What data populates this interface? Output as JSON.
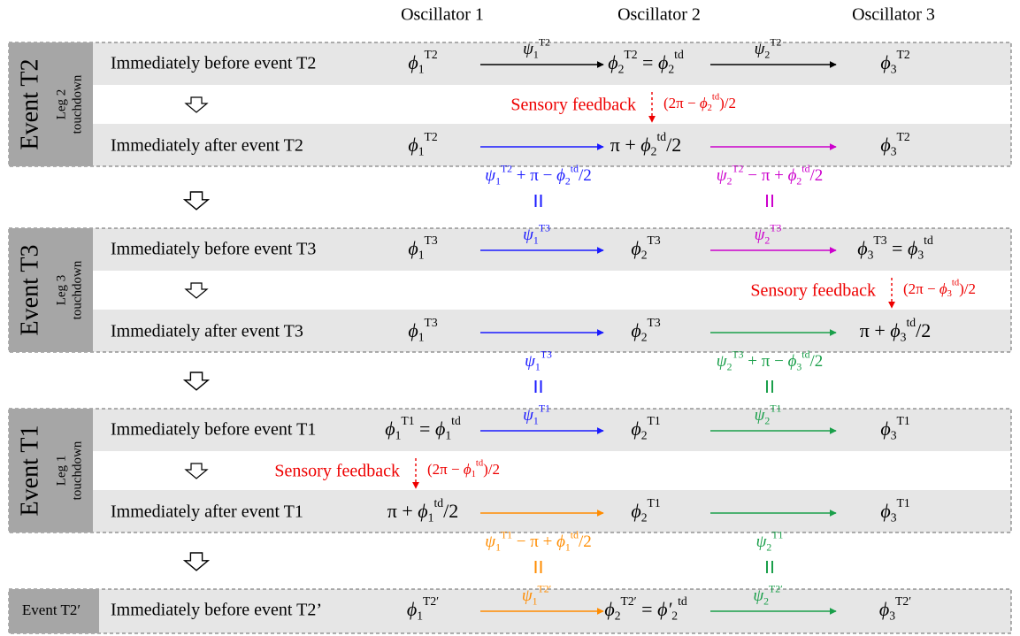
{
  "columns": [
    "Oscillator 1",
    "Oscillator 2",
    "Oscillator 3"
  ],
  "blocks": [
    {
      "label": "Event T2",
      "leg": "Leg 2",
      "touch": "touchdown",
      "before": {
        "text": "Immediately before event T2",
        "cells": [
          [
            [
              "ϕ",
              "1",
              "T2"
            ]
          ],
          [
            [
              "ϕ",
              "2",
              "T2"
            ],
            " = ",
            [
              "ϕ",
              "2",
              "td"
            ]
          ],
          [
            [
              "ϕ",
              "3",
              "T2"
            ]
          ]
        ],
        "arrows": [
          {
            "color": "#000000",
            "label": [
              [
                "ψ",
                "1",
                "T2"
              ]
            ]
          },
          {
            "color": "#000000",
            "label": [
              [
                "ψ",
                "2",
                "T2"
              ]
            ]
          }
        ]
      },
      "feedback": {
        "text": "Sensory feedback",
        "expr": [
          "(2π − ",
          [
            "ϕ",
            "2",
            "td"
          ],
          ")/2"
        ]
      },
      "after": {
        "text": "Immediately after event T2",
        "cells": [
          [
            [
              "ϕ",
              "1",
              "T2"
            ]
          ],
          [
            "π + ",
            [
              "ϕ",
              "2",
              "td"
            ],
            "/2"
          ],
          [
            [
              "ϕ",
              "3",
              "T2"
            ]
          ]
        ],
        "arrows": [
          {
            "color": "#1a1aff"
          },
          {
            "color": "#cc00cc"
          }
        ]
      },
      "below": [
        {
          "color": "#1a1aff",
          "label": [
            [
              "ψ",
              "1",
              "T2"
            ],
            " + π − ",
            [
              "ϕ",
              "2",
              "td"
            ],
            "/2"
          ]
        },
        {
          "color": "#cc00cc",
          "label": [
            [
              "ψ",
              "2",
              "T2"
            ],
            " − π + ",
            [
              "ϕ",
              "2",
              "td"
            ],
            "/2"
          ]
        }
      ]
    },
    {
      "label": "Event T3",
      "leg": "Leg 3",
      "touch": "touchdown",
      "before": {
        "text": "Immediately before event T3",
        "cells": [
          [
            [
              "ϕ",
              "1",
              "T3"
            ]
          ],
          [
            [
              "ϕ",
              "2",
              "T3"
            ]
          ],
          [
            [
              "ϕ",
              "3",
              "T3"
            ],
            " = ",
            [
              "ϕ",
              "3",
              "td"
            ]
          ]
        ],
        "arrows": [
          {
            "color": "#1a1aff",
            "label": [
              [
                "ψ",
                "1",
                "T3"
              ]
            ]
          },
          {
            "color": "#cc00cc",
            "label": [
              [
                "ψ",
                "2",
                "T3"
              ]
            ]
          }
        ]
      },
      "feedback": {
        "text": "Sensory feedback",
        "expr": [
          "(2π − ",
          [
            "ϕ",
            "3",
            "td"
          ],
          ")/2"
        ]
      },
      "after": {
        "text": "Immediately after event T3",
        "cells": [
          [
            [
              "ϕ",
              "1",
              "T3"
            ]
          ],
          [
            [
              "ϕ",
              "2",
              "T3"
            ]
          ],
          [
            "π + ",
            [
              "ϕ",
              "3",
              "td"
            ],
            "/2"
          ]
        ],
        "arrows": [
          {
            "color": "#1a1aff"
          },
          {
            "color": "#1a9f4a"
          }
        ]
      },
      "below": [
        {
          "color": "#1a1aff",
          "label": [
            [
              "ψ",
              "1",
              "T3"
            ]
          ]
        },
        {
          "color": "#1a9f4a",
          "label": [
            [
              "ψ",
              "2",
              "T3"
            ],
            " + π − ",
            [
              "ϕ",
              "3",
              "td"
            ],
            "/2"
          ]
        }
      ]
    },
    {
      "label": "Event T1",
      "leg": "Leg 1",
      "touch": "touchdown",
      "before": {
        "text": "Immediately before event T1",
        "cells": [
          [
            [
              "ϕ",
              "1",
              "T1"
            ],
            " = ",
            [
              "ϕ",
              "1",
              "td"
            ]
          ],
          [
            [
              "ϕ",
              "2",
              "T1"
            ]
          ],
          [
            [
              "ϕ",
              "3",
              "T1"
            ]
          ]
        ],
        "arrows": [
          {
            "color": "#1a1aff",
            "label": [
              [
                "ψ",
                "1",
                "T1"
              ]
            ]
          },
          {
            "color": "#1a9f4a",
            "label": [
              [
                "ψ",
                "2",
                "T1"
              ]
            ]
          }
        ]
      },
      "feedback": {
        "text": "Sensory feedback",
        "expr": [
          "(2π − ",
          [
            "ϕ",
            "1",
            "td"
          ],
          ")/2"
        ]
      },
      "after": {
        "text": "Immediately after event T1",
        "cells": [
          [
            "π + ",
            [
              "ϕ",
              "1",
              "td"
            ],
            "/2"
          ],
          [
            [
              "ϕ",
              "2",
              "T1"
            ]
          ],
          [
            [
              "ϕ",
              "3",
              "T1"
            ]
          ]
        ],
        "arrows": [
          {
            "color": "#ff8c00"
          },
          {
            "color": "#1a9f4a"
          }
        ]
      },
      "below": [
        {
          "color": "#ff8c00",
          "label": [
            [
              "ψ",
              "1",
              "T1"
            ],
            " − π + ",
            [
              "ϕ",
              "1",
              "td"
            ],
            "/2"
          ]
        },
        {
          "color": "#1a9f4a",
          "label": [
            [
              "ψ",
              "2",
              "T1"
            ]
          ]
        }
      ]
    },
    {
      "label": "Event T2′",
      "before": {
        "text": "Immediately before event T2’",
        "cells": [
          [
            [
              "ϕ",
              "1",
              "T2′"
            ]
          ],
          [
            [
              "ϕ",
              "2",
              "T2′"
            ],
            " = ",
            [
              "ϕ′",
              "2",
              "td"
            ]
          ],
          [
            [
              "ϕ",
              "3",
              "T2′"
            ]
          ]
        ],
        "arrows": [
          {
            "color": "#ff8c00",
            "label": [
              [
                "ψ",
                "1",
                "T2′"
              ]
            ]
          },
          {
            "color": "#1a9f4a",
            "label": [
              [
                "ψ",
                "2",
                "T2′"
              ]
            ]
          }
        ]
      }
    }
  ]
}
